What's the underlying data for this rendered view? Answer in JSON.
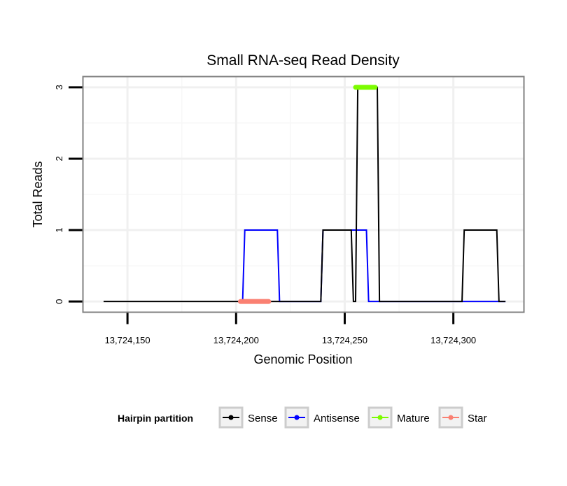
{
  "chart_data": {
    "type": "line",
    "title": "Small RNA-seq Read Density",
    "xlabel": "Genomic Position",
    "ylabel": "Total Reads",
    "xlim": [
      13724129.5,
      13724332.5
    ],
    "ylim": [
      -0.15,
      3.15
    ],
    "x_ticks": [
      13724150,
      13724200,
      13724250,
      13724300
    ],
    "x_tick_labels": [
      "13,724,150",
      "13,724,200",
      "13,724,250",
      "13,724,300"
    ],
    "y_ticks": [
      0,
      1,
      2,
      3
    ],
    "y_tick_labels": [
      "0",
      "1",
      "2",
      "3"
    ],
    "grid": true,
    "legend": {
      "title": "Hairpin partition",
      "position": "bottom",
      "entries": [
        {
          "label": "Sense",
          "color": "#000000"
        },
        {
          "label": "Antisense",
          "color": "#0000ff"
        },
        {
          "label": "Mature",
          "color": "#7cfc00"
        },
        {
          "label": "Star",
          "color": "#fa8072"
        }
      ]
    },
    "series": [
      {
        "name": "Sense",
        "color": "#000000",
        "x": [
          13724139,
          13724239,
          13724240,
          13724253,
          13724254,
          13724255,
          13724256,
          13724265,
          13724266,
          13724304,
          13724305,
          13724320,
          13724321,
          13724324
        ],
        "y": [
          0,
          0,
          1,
          1,
          0,
          0,
          3,
          3,
          0,
          0,
          1,
          1,
          0,
          0
        ]
      },
      {
        "name": "Antisense",
        "color": "#0000ff",
        "x": [
          13724203,
          13724204,
          13724219,
          13724220,
          13724239,
          13724240,
          13724260,
          13724261,
          13724324
        ],
        "y": [
          0,
          1,
          1,
          0,
          0,
          1,
          1,
          0,
          0
        ]
      },
      {
        "name": "Mature",
        "color": "#7cfc00",
        "segment": true,
        "x": [
          13724255,
          13724264
        ],
        "y": [
          3,
          3
        ]
      },
      {
        "name": "Star",
        "color": "#fa8072",
        "segment": true,
        "x": [
          13724202,
          13724215
        ],
        "y": [
          0,
          0
        ]
      }
    ]
  }
}
